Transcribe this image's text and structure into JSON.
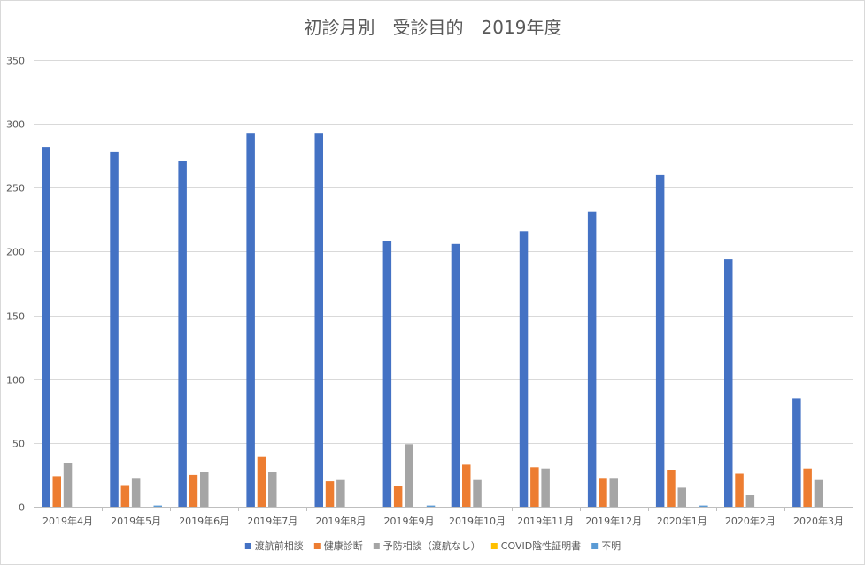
{
  "chart_data": {
    "type": "bar",
    "title": "初診月別　受診目的　2019年度",
    "categories": [
      "2019年4月",
      "2019年5月",
      "2019年6月",
      "2019年7月",
      "2019年8月",
      "2019年9月",
      "2019年10月",
      "2019年11月",
      "2019年12月",
      "2020年1月",
      "2020年2月",
      "2020年3月"
    ],
    "series": [
      {
        "name": "渡航前相談",
        "color": "#4472c4",
        "values": [
          282,
          278,
          271,
          293,
          293,
          208,
          206,
          216,
          231,
          260,
          194,
          85
        ]
      },
      {
        "name": "健康診断",
        "color": "#ed7d31",
        "values": [
          24,
          17,
          25,
          39,
          20,
          16,
          33,
          31,
          22,
          29,
          26,
          30
        ]
      },
      {
        "name": "予防相談（渡航なし）",
        "color": "#a5a5a5",
        "values": [
          34,
          22,
          27,
          27,
          21,
          49,
          21,
          30,
          22,
          15,
          9,
          21
        ]
      },
      {
        "name": "COVID陰性証明書",
        "color": "#ffc000",
        "values": [
          0,
          0,
          0,
          0,
          0,
          0,
          0,
          0,
          0,
          0,
          0,
          0
        ]
      },
      {
        "name": "不明",
        "color": "#5b9bd5",
        "values": [
          0,
          1,
          0,
          0,
          0,
          1,
          0,
          0,
          0,
          1,
          0,
          0
        ]
      }
    ],
    "ylim": [
      0,
      350
    ],
    "yticks": [
      0,
      50,
      100,
      150,
      200,
      250,
      300,
      350
    ],
    "grid": true,
    "legend_position": "bottom",
    "xlabel": "",
    "ylabel": ""
  }
}
